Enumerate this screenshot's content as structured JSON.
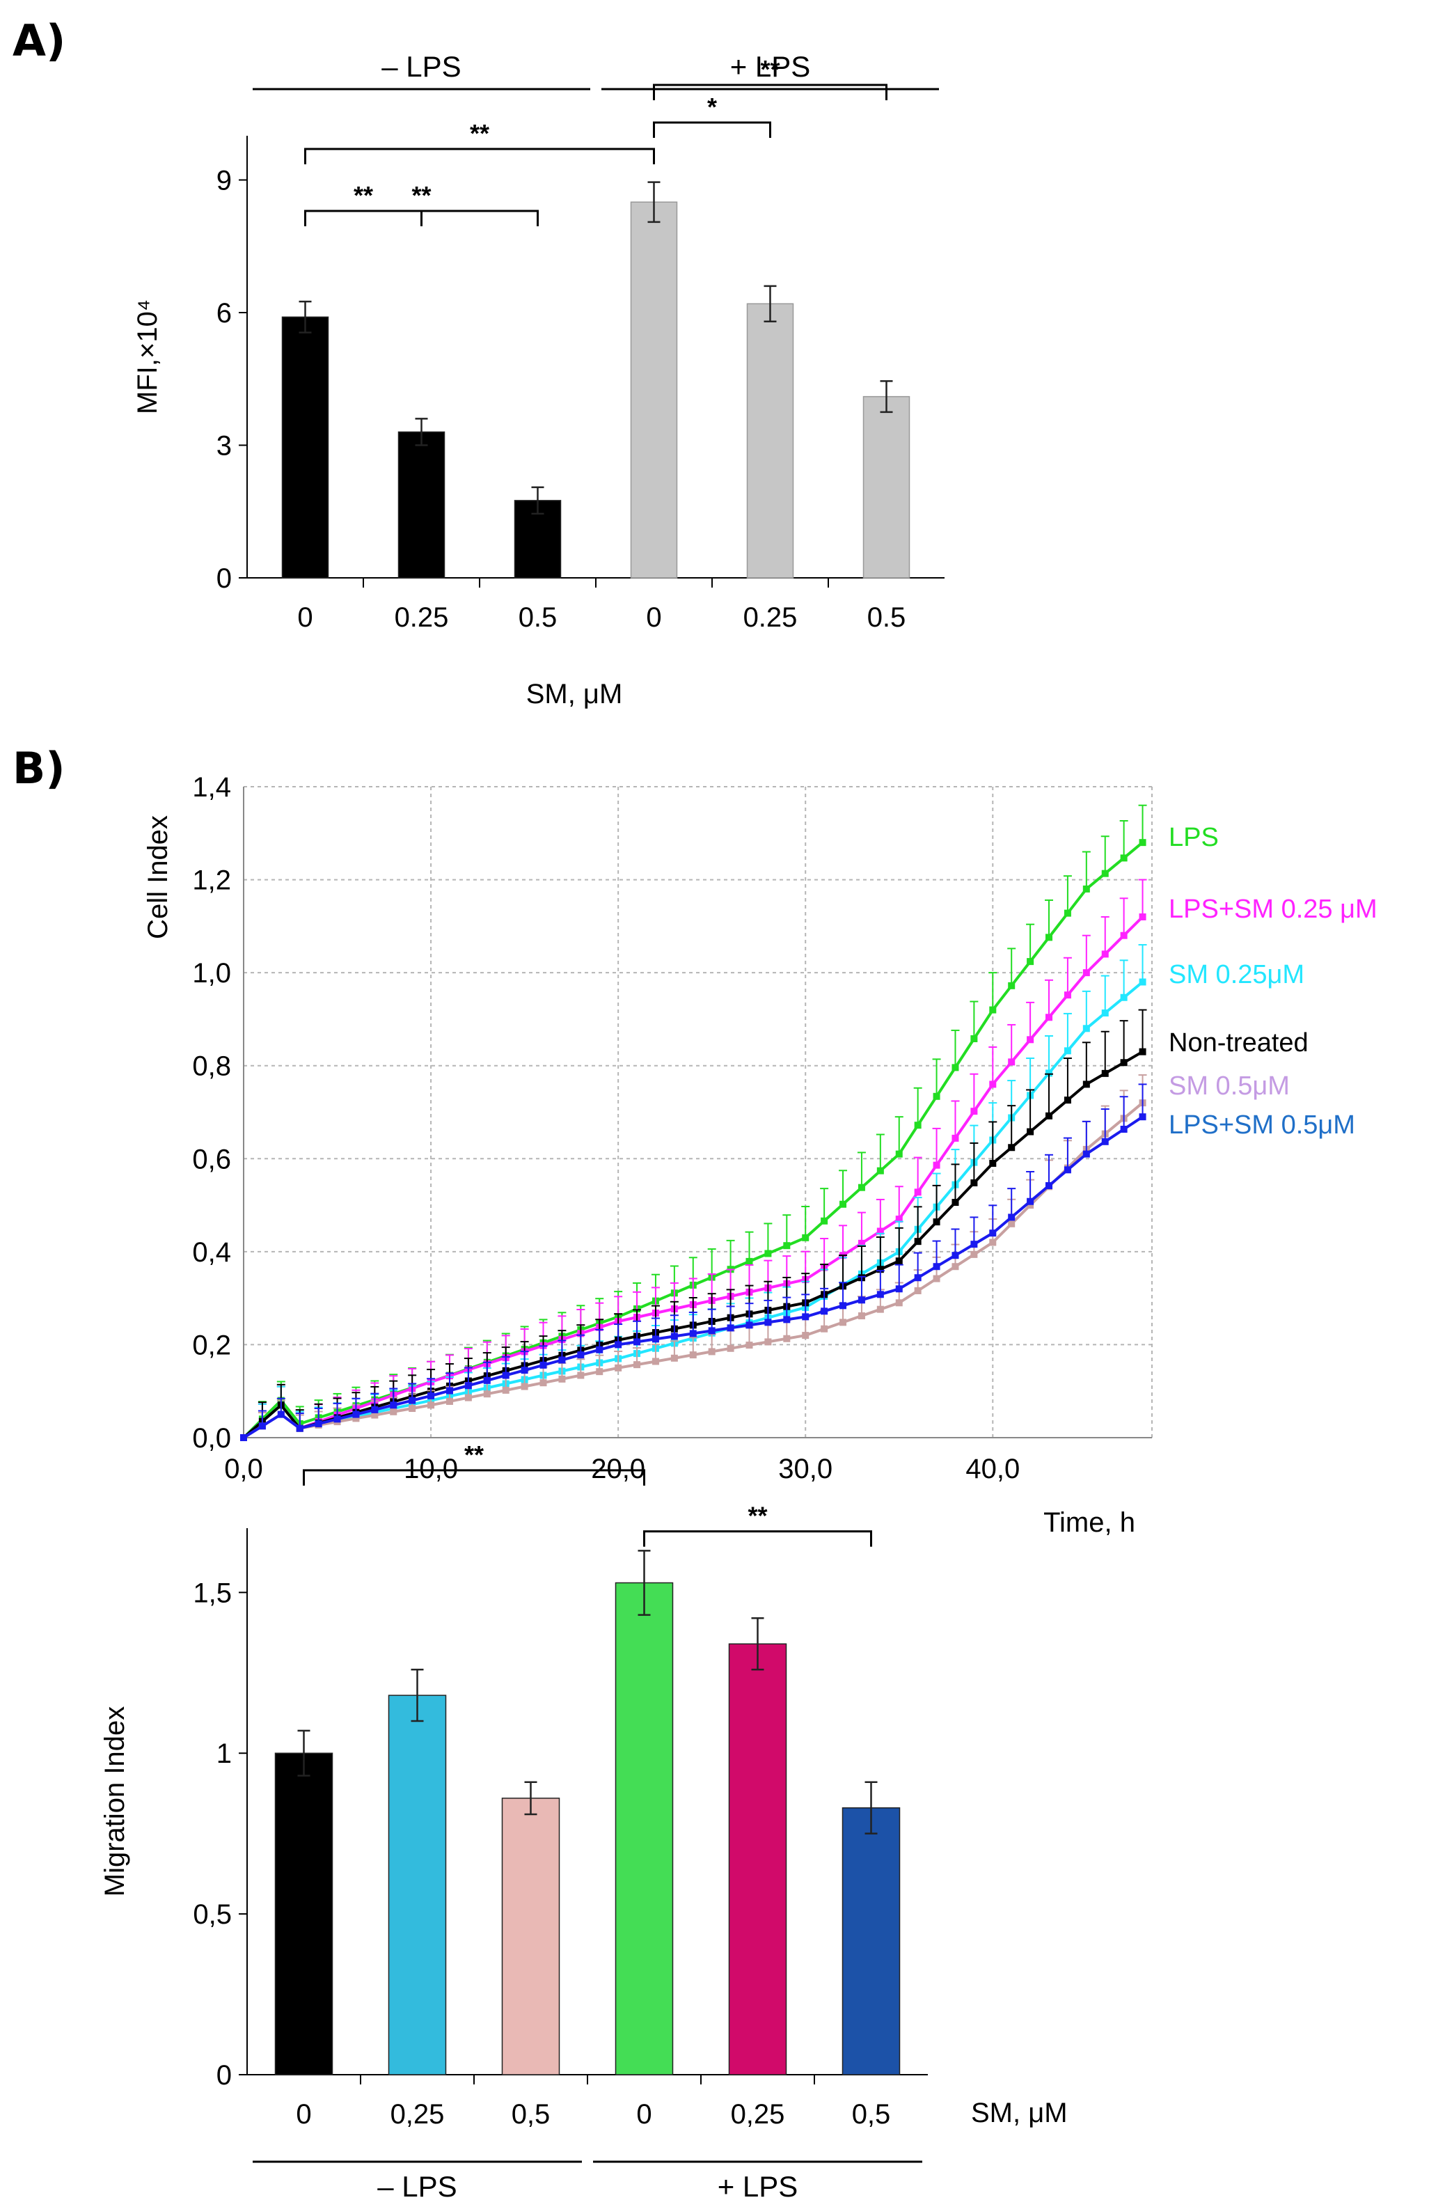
{
  "figure": {
    "panel_a_label": "A)",
    "panel_b_label": "B)"
  },
  "chart_data": [
    {
      "id": "mfi",
      "type": "bar",
      "title": "",
      "xlabel": "SM, μM",
      "ylabel": "MFI,×10⁴",
      "ylim": [
        0,
        10
      ],
      "yticks": [
        {
          "v": 0,
          "label": "0"
        },
        {
          "v": 3,
          "label": "3"
        },
        {
          "v": 6,
          "label": "6"
        },
        {
          "v": 9,
          "label": "9"
        }
      ],
      "groups": [
        {
          "label": "– LPS",
          "bars": [
            0,
            1,
            2
          ]
        },
        {
          "label": "+ LPS",
          "bars": [
            3,
            4,
            5
          ]
        }
      ],
      "categories": [
        "0",
        "0.25",
        "0.5",
        "0",
        "0.25",
        "0.5"
      ],
      "values": [
        5.9,
        3.3,
        1.75,
        8.5,
        6.2,
        4.1
      ],
      "errors": [
        0.35,
        0.3,
        0.3,
        0.45,
        0.4,
        0.35
      ],
      "colors": [
        "#000000",
        "#000000",
        "#000000",
        "#c6c6c6",
        "#c6c6c6",
        "#c6c6c6"
      ],
      "significance": [
        {
          "from": 0,
          "to": 1,
          "label": "**",
          "level": 8.3
        },
        {
          "from": 0,
          "to": 2,
          "label": "**",
          "level": 8.3
        },
        {
          "from": 0,
          "to": 3,
          "label": "**",
          "level": 9.7
        },
        {
          "from": 3,
          "to": 4,
          "label": "*",
          "level": 10.3
        },
        {
          "from": 3,
          "to": 5,
          "label": "**",
          "level": 11.15
        }
      ]
    },
    {
      "id": "cell-index",
      "type": "line",
      "xlabel": "Time, h",
      "ylabel": "Cell Index",
      "xlim": [
        0,
        48.5
      ],
      "ylim": [
        0,
        1.4
      ],
      "xticks": [
        {
          "v": 0,
          "label": "0,0"
        },
        {
          "v": 10,
          "label": "10,0"
        },
        {
          "v": 20,
          "label": "20,0"
        },
        {
          "v": 30,
          "label": "30,0"
        },
        {
          "v": 40,
          "label": "40,0"
        }
      ],
      "yticks": [
        {
          "v": 0,
          "label": "0,0"
        },
        {
          "v": 0.2,
          "label": "0,2"
        },
        {
          "v": 0.4,
          "label": "0,4"
        },
        {
          "v": 0.6,
          "label": "0,6"
        },
        {
          "v": 0.8,
          "label": "0,8"
        },
        {
          "v": 1.0,
          "label": "1,0"
        },
        {
          "v": 1.2,
          "label": "1,2"
        },
        {
          "v": 1.4,
          "label": "1,4"
        }
      ],
      "grid": true,
      "knots_x": [
        0,
        2,
        3,
        10,
        20,
        30,
        35,
        40,
        45,
        48
      ],
      "series": [
        {
          "name": "LPS",
          "color": "#22dd22",
          "label_color": "#22dd22",
          "knots_y": [
            0,
            0.08,
            0.03,
            0.12,
            0.26,
            0.43,
            0.61,
            0.92,
            1.18,
            1.28
          ],
          "err": 0.07
        },
        {
          "name": "LPS+SM 0.25 μM",
          "color": "#ff22ff",
          "label_color": "#ff22ff",
          "knots_y": [
            0,
            0.07,
            0.02,
            0.12,
            0.25,
            0.34,
            0.47,
            0.76,
            1.0,
            1.12
          ],
          "err": 0.07
        },
        {
          "name": "SM 0.25μM",
          "color": "#22e6ff",
          "label_color": "#22e6ff",
          "knots_y": [
            0,
            0.07,
            0.02,
            0.08,
            0.17,
            0.28,
            0.4,
            0.64,
            0.88,
            0.98
          ],
          "err": 0.07
        },
        {
          "name": "Non-treated",
          "color": "#000000",
          "label_color": "#000000",
          "knots_y": [
            0,
            0.07,
            0.02,
            0.1,
            0.21,
            0.29,
            0.38,
            0.59,
            0.76,
            0.83
          ],
          "err": 0.08
        },
        {
          "name": "SM 0.5μM",
          "color": "#c8a0a0",
          "label_color": "#c49be3",
          "knots_y": [
            0,
            0.05,
            0.02,
            0.07,
            0.15,
            0.22,
            0.29,
            0.42,
            0.62,
            0.72
          ],
          "err": 0.05
        },
        {
          "name": "LPS+SM 0.5μM",
          "color": "#1a1aee",
          "label_color": "#1f6fc8",
          "knots_y": [
            0,
            0.05,
            0.02,
            0.09,
            0.2,
            0.26,
            0.32,
            0.44,
            0.61,
            0.69
          ],
          "err": 0.06
        }
      ]
    },
    {
      "id": "migration",
      "type": "bar",
      "xlabel": "SM, μM",
      "ylabel": "Migration Index",
      "ylim": [
        0,
        1.7
      ],
      "yticks": [
        {
          "v": 0,
          "label": "0"
        },
        {
          "v": 0.5,
          "label": "0,5"
        },
        {
          "v": 1,
          "label": "1"
        },
        {
          "v": 1.5,
          "label": "1,5"
        }
      ],
      "groups": [
        {
          "label": "– LPS",
          "bars": [
            0,
            1,
            2
          ]
        },
        {
          "label": "+ LPS",
          "bars": [
            3,
            4,
            5
          ]
        }
      ],
      "categories": [
        "0",
        "0,25",
        "0,5",
        "0",
        "0,25",
        "0,5"
      ],
      "values": [
        1.0,
        1.18,
        0.86,
        1.53,
        1.34,
        0.83
      ],
      "errors": [
        0.07,
        0.08,
        0.05,
        0.1,
        0.08,
        0.08
      ],
      "colors": [
        "#000000",
        "#33bbdd",
        "#e9b9b5",
        "#44dd55",
        "#d10a6a",
        "#1c52a8"
      ],
      "significance": [
        {
          "from": 0,
          "to": 3,
          "label": "**",
          "level": 1.88
        },
        {
          "from": 3,
          "to": 5,
          "label": "**",
          "level": 1.69
        }
      ]
    }
  ]
}
